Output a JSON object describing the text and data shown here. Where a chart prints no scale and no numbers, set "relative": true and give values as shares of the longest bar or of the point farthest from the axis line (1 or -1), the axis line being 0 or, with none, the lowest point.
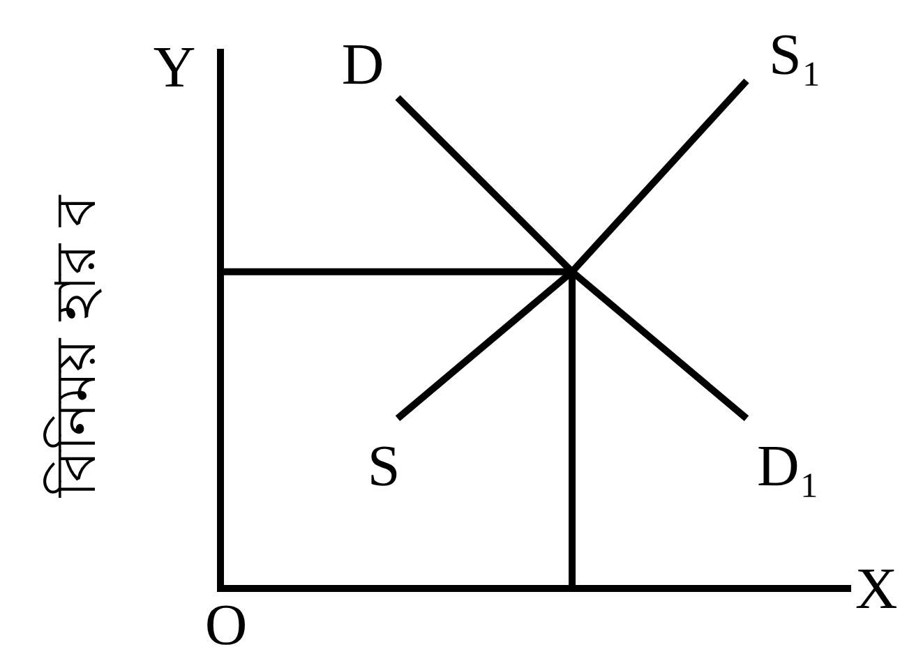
{
  "chart_data": {
    "type": "line",
    "relative": true,
    "ylabel": "বিনিময় হার ব",
    "categories": [
      null,
      null,
      null
    ],
    "marker": "none",
    "line_style": "solid",
    "series": [
      {
        "color": "#000000",
        "values": [
          0.967,
          0.624,
          0.335
        ]
      },
      {
        "color": "#000000",
        "values": [
          0.335,
          0.624,
          1
        ]
      }
    ],
    "ref_lines": [
      {
        "axis": "y",
        "value": 0.624,
        "color": "#000000"
      }
    ],
    "annotations": [
      "Y",
      "O",
      "X",
      "D",
      "D₁",
      "S",
      "S₁"
    ]
  }
}
